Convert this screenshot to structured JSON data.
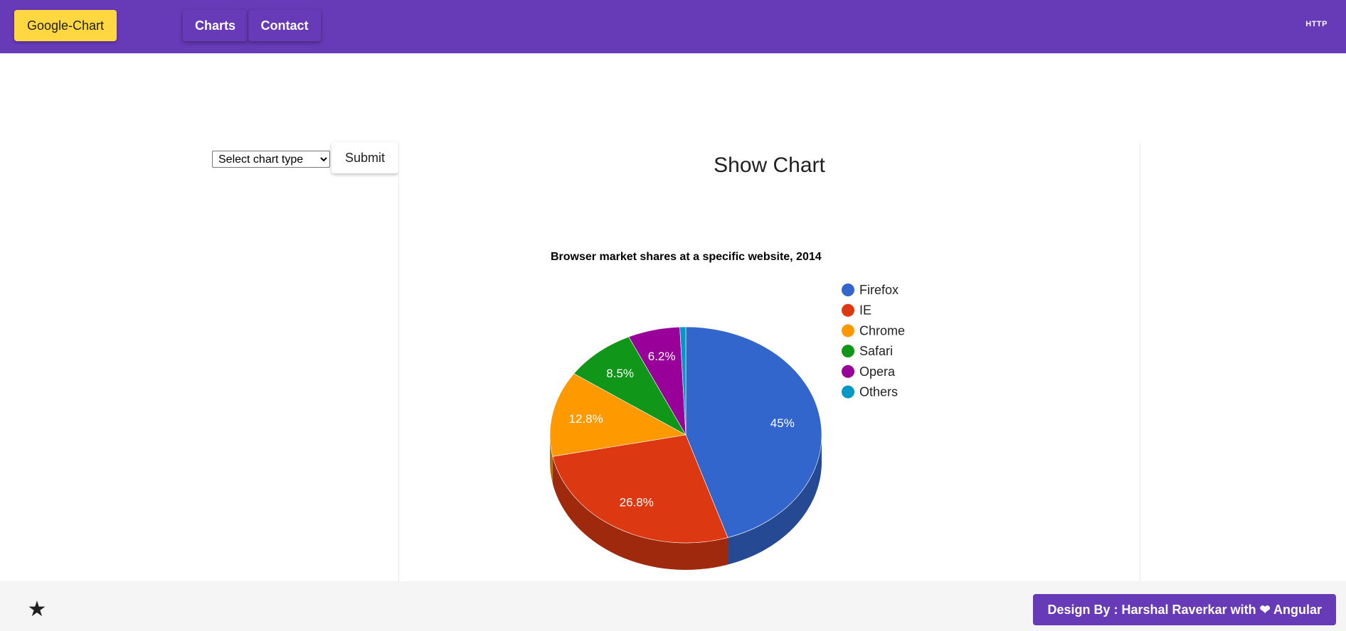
{
  "header": {
    "brand_label": "Google-Chart",
    "nav": [
      {
        "label": "Charts"
      },
      {
        "label": "Contact"
      }
    ],
    "right_link": "HTTP"
  },
  "form": {
    "select_value": "Select chart type",
    "submit_label": "Submit"
  },
  "card": {
    "title": "Show Chart"
  },
  "chart_data": {
    "type": "pie",
    "style": "3d",
    "title": "Browser market shares at a specific website, 2014",
    "legend_position": "right",
    "series": [
      {
        "name": "Firefox",
        "value": 45.0,
        "label": "45%",
        "color": "#3366cc"
      },
      {
        "name": "IE",
        "value": 26.8,
        "label": "26.8%",
        "color": "#dc3912"
      },
      {
        "name": "Chrome",
        "value": 12.8,
        "label": "12.8%",
        "color": "#ff9900"
      },
      {
        "name": "Safari",
        "value": 8.5,
        "label": "8.5%",
        "color": "#109618"
      },
      {
        "name": "Opera",
        "value": 6.2,
        "label": "6.2%",
        "color": "#990099"
      },
      {
        "name": "Others",
        "value": 0.7,
        "label": "",
        "color": "#0099c6"
      }
    ]
  },
  "footer": {
    "credit_label": "Design By : Harshal Raverkar with ❤ Angular",
    "star_icon": "star-icon"
  },
  "colors": {
    "primary": "#673ab7",
    "accent": "#ffd740",
    "footer_bg": "#f5f5f5"
  }
}
